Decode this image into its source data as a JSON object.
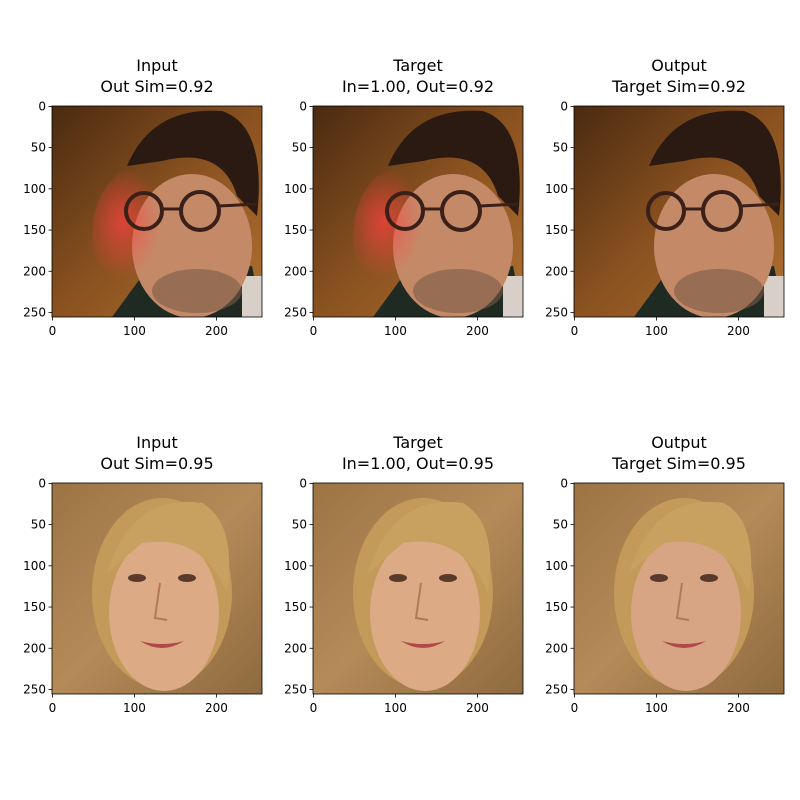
{
  "panels": [
    {
      "title": [
        "Input",
        "Out Sim=0.92"
      ]
    },
    {
      "title": [
        "Target",
        "In=1.00, Out=0.92"
      ]
    },
    {
      "title": [
        "Output",
        "Target Sim=0.92"
      ]
    },
    {
      "title": [
        "Input",
        "Out Sim=0.95"
      ]
    },
    {
      "title": [
        "Target",
        "In=1.00, Out=0.95"
      ]
    },
    {
      "title": [
        "Output",
        "Target Sim=0.95"
      ]
    }
  ],
  "axes": {
    "xlim": [
      -0.5,
      255.5
    ],
    "ylim": [
      255.5,
      -0.5
    ],
    "xticks": [
      0,
      100,
      200
    ],
    "yticks": [
      0,
      50,
      100,
      150,
      200,
      250
    ]
  }
}
